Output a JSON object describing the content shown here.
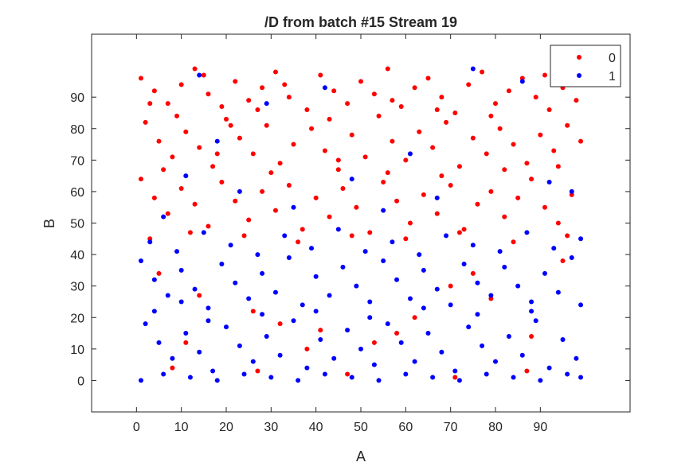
{
  "chart_data": {
    "type": "scatter",
    "title": "/D from batch #15 Stream 19",
    "xlabel": "A",
    "ylabel": "B",
    "xlim": [
      -10,
      110
    ],
    "ylim": [
      -10,
      110
    ],
    "xticks": [
      0,
      10,
      20,
      30,
      40,
      50,
      60,
      70,
      80,
      90
    ],
    "yticks": [
      0,
      10,
      20,
      30,
      40,
      50,
      60,
      70,
      80,
      90
    ],
    "legend": {
      "placement": "top-right"
    },
    "colors": {
      "0": "#ff0000",
      "1": "#0000ff",
      "axis": "#262626"
    },
    "series": [
      {
        "name": "0",
        "color": "#ff0000",
        "points": [
          [
            1,
            96
          ],
          [
            4,
            92
          ],
          [
            7,
            88
          ],
          [
            10,
            94
          ],
          [
            13,
            99
          ],
          [
            16,
            91
          ],
          [
            19,
            87
          ],
          [
            22,
            95
          ],
          [
            25,
            89
          ],
          [
            28,
            93
          ],
          [
            31,
            98
          ],
          [
            34,
            90
          ],
          [
            38,
            86
          ],
          [
            41,
            97
          ],
          [
            44,
            92
          ],
          [
            47,
            88
          ],
          [
            50,
            95
          ],
          [
            53,
            91
          ],
          [
            56,
            99
          ],
          [
            59,
            87
          ],
          [
            62,
            93
          ],
          [
            65,
            96
          ],
          [
            68,
            90
          ],
          [
            71,
            85
          ],
          [
            74,
            94
          ],
          [
            77,
            98
          ],
          [
            80,
            88
          ],
          [
            83,
            92
          ],
          [
            86,
            96
          ],
          [
            89,
            90
          ],
          [
            92,
            86
          ],
          [
            95,
            93
          ],
          [
            98,
            89
          ],
          [
            2,
            82
          ],
          [
            5,
            76
          ],
          [
            8,
            71
          ],
          [
            11,
            79
          ],
          [
            14,
            74
          ],
          [
            17,
            68
          ],
          [
            20,
            83
          ],
          [
            23,
            77
          ],
          [
            26,
            72
          ],
          [
            29,
            81
          ],
          [
            32,
            69
          ],
          [
            35,
            75
          ],
          [
            39,
            80
          ],
          [
            42,
            73
          ],
          [
            45,
            67
          ],
          [
            48,
            78
          ],
          [
            51,
            71
          ],
          [
            54,
            84
          ],
          [
            57,
            76
          ],
          [
            60,
            70
          ],
          [
            63,
            79
          ],
          [
            66,
            74
          ],
          [
            69,
            82
          ],
          [
            72,
            68
          ],
          [
            75,
            77
          ],
          [
            78,
            72
          ],
          [
            81,
            80
          ],
          [
            84,
            75
          ],
          [
            87,
            69
          ],
          [
            90,
            78
          ],
          [
            93,
            73
          ],
          [
            96,
            81
          ],
          [
            99,
            76
          ],
          [
            1,
            64
          ],
          [
            4,
            58
          ],
          [
            7,
            53
          ],
          [
            10,
            61
          ],
          [
            13,
            56
          ],
          [
            16,
            49
          ],
          [
            19,
            63
          ],
          [
            22,
            57
          ],
          [
            25,
            51
          ],
          [
            28,
            60
          ],
          [
            31,
            54
          ],
          [
            34,
            62
          ],
          [
            37,
            48
          ],
          [
            40,
            58
          ],
          [
            43,
            52
          ],
          [
            46,
            61
          ],
          [
            49,
            55
          ],
          [
            52,
            47
          ],
          [
            55,
            63
          ],
          [
            58,
            57
          ],
          [
            61,
            50
          ],
          [
            64,
            59
          ],
          [
            67,
            53
          ],
          [
            70,
            62
          ],
          [
            73,
            48
          ],
          [
            76,
            56
          ],
          [
            79,
            60
          ],
          [
            82,
            52
          ],
          [
            85,
            58
          ],
          [
            88,
            64
          ],
          [
            91,
            55
          ],
          [
            94,
            50
          ],
          [
            97,
            59
          ],
          [
            3,
            45
          ],
          [
            12,
            47
          ],
          [
            24,
            46
          ],
          [
            36,
            44
          ],
          [
            48,
            46
          ],
          [
            60,
            45
          ],
          [
            72,
            47
          ],
          [
            84,
            44
          ],
          [
            96,
            46
          ],
          [
            3,
            88
          ],
          [
            9,
            84
          ],
          [
            15,
            97
          ],
          [
            21,
            81
          ],
          [
            27,
            86
          ],
          [
            33,
            94
          ],
          [
            43,
            83
          ],
          [
            57,
            89
          ],
          [
            67,
            86
          ],
          [
            79,
            84
          ],
          [
            91,
            97
          ],
          [
            97,
            95
          ],
          [
            6,
            67
          ],
          [
            18,
            72
          ],
          [
            30,
            66
          ],
          [
            45,
            70
          ],
          [
            56,
            66
          ],
          [
            68,
            65
          ],
          [
            82,
            67
          ],
          [
            94,
            68
          ],
          [
            5,
            34
          ],
          [
            14,
            27
          ],
          [
            26,
            22
          ],
          [
            32,
            18
          ],
          [
            41,
            16
          ],
          [
            53,
            12
          ],
          [
            62,
            20
          ],
          [
            70,
            30
          ],
          [
            79,
            26
          ],
          [
            88,
            14
          ],
          [
            95,
            38
          ],
          [
            8,
            4
          ],
          [
            27,
            3
          ],
          [
            47,
            2
          ],
          [
            71,
            1
          ],
          [
            87,
            3
          ],
          [
            11,
            12
          ],
          [
            38,
            10
          ],
          [
            58,
            15
          ],
          [
            75,
            34
          ]
        ]
      },
      {
        "name": "1",
        "color": "#0000ff",
        "points": [
          [
            1,
            38
          ],
          [
            4,
            32
          ],
          [
            7,
            27
          ],
          [
            10,
            35
          ],
          [
            13,
            29
          ],
          [
            16,
            23
          ],
          [
            19,
            37
          ],
          [
            22,
            31
          ],
          [
            25,
            26
          ],
          [
            28,
            34
          ],
          [
            31,
            28
          ],
          [
            34,
            39
          ],
          [
            37,
            24
          ],
          [
            40,
            33
          ],
          [
            43,
            27
          ],
          [
            46,
            36
          ],
          [
            49,
            30
          ],
          [
            52,
            25
          ],
          [
            55,
            38
          ],
          [
            58,
            32
          ],
          [
            61,
            26
          ],
          [
            64,
            35
          ],
          [
            67,
            29
          ],
          [
            70,
            24
          ],
          [
            73,
            37
          ],
          [
            76,
            31
          ],
          [
            79,
            27
          ],
          [
            82,
            36
          ],
          [
            85,
            30
          ],
          [
            88,
            25
          ],
          [
            91,
            34
          ],
          [
            94,
            28
          ],
          [
            97,
            39
          ],
          [
            2,
            18
          ],
          [
            5,
            12
          ],
          [
            8,
            7
          ],
          [
            11,
            15
          ],
          [
            14,
            9
          ],
          [
            17,
            3
          ],
          [
            20,
            17
          ],
          [
            23,
            11
          ],
          [
            26,
            6
          ],
          [
            29,
            14
          ],
          [
            32,
            8
          ],
          [
            35,
            19
          ],
          [
            38,
            4
          ],
          [
            41,
            13
          ],
          [
            44,
            7
          ],
          [
            47,
            16
          ],
          [
            50,
            10
          ],
          [
            53,
            5
          ],
          [
            56,
            18
          ],
          [
            59,
            12
          ],
          [
            62,
            6
          ],
          [
            65,
            15
          ],
          [
            68,
            9
          ],
          [
            71,
            3
          ],
          [
            74,
            17
          ],
          [
            77,
            11
          ],
          [
            80,
            6
          ],
          [
            83,
            14
          ],
          [
            86,
            8
          ],
          [
            89,
            19
          ],
          [
            92,
            4
          ],
          [
            95,
            13
          ],
          [
            98,
            7
          ],
          [
            1,
            0
          ],
          [
            6,
            2
          ],
          [
            12,
            1
          ],
          [
            18,
            0
          ],
          [
            24,
            2
          ],
          [
            30,
            1
          ],
          [
            36,
            0
          ],
          [
            42,
            2
          ],
          [
            48,
            1
          ],
          [
            54,
            0
          ],
          [
            60,
            2
          ],
          [
            66,
            1
          ],
          [
            72,
            0
          ],
          [
            78,
            2
          ],
          [
            84,
            1
          ],
          [
            90,
            0
          ],
          [
            96,
            2
          ],
          [
            99,
            1
          ],
          [
            3,
            44
          ],
          [
            9,
            41
          ],
          [
            15,
            47
          ],
          [
            21,
            43
          ],
          [
            27,
            40
          ],
          [
            33,
            46
          ],
          [
            39,
            42
          ],
          [
            45,
            48
          ],
          [
            51,
            41
          ],
          [
            57,
            44
          ],
          [
            63,
            40
          ],
          [
            69,
            46
          ],
          [
            75,
            43
          ],
          [
            81,
            41
          ],
          [
            87,
            47
          ],
          [
            93,
            42
          ],
          [
            99,
            45
          ],
          [
            6,
            52
          ],
          [
            11,
            65
          ],
          [
            14,
            97
          ],
          [
            23,
            60
          ],
          [
            29,
            88
          ],
          [
            35,
            55
          ],
          [
            42,
            93
          ],
          [
            55,
            54
          ],
          [
            61,
            72
          ],
          [
            67,
            58
          ],
          [
            75,
            99
          ],
          [
            86,
            95
          ],
          [
            92,
            63
          ],
          [
            97,
            60
          ],
          [
            18,
            76
          ],
          [
            48,
            64
          ],
          [
            4,
            22
          ],
          [
            10,
            25
          ],
          [
            16,
            19
          ],
          [
            28,
            21
          ],
          [
            40,
            22
          ],
          [
            52,
            20
          ],
          [
            64,
            23
          ],
          [
            76,
            21
          ],
          [
            88,
            22
          ],
          [
            99,
            24
          ]
        ]
      }
    ]
  }
}
